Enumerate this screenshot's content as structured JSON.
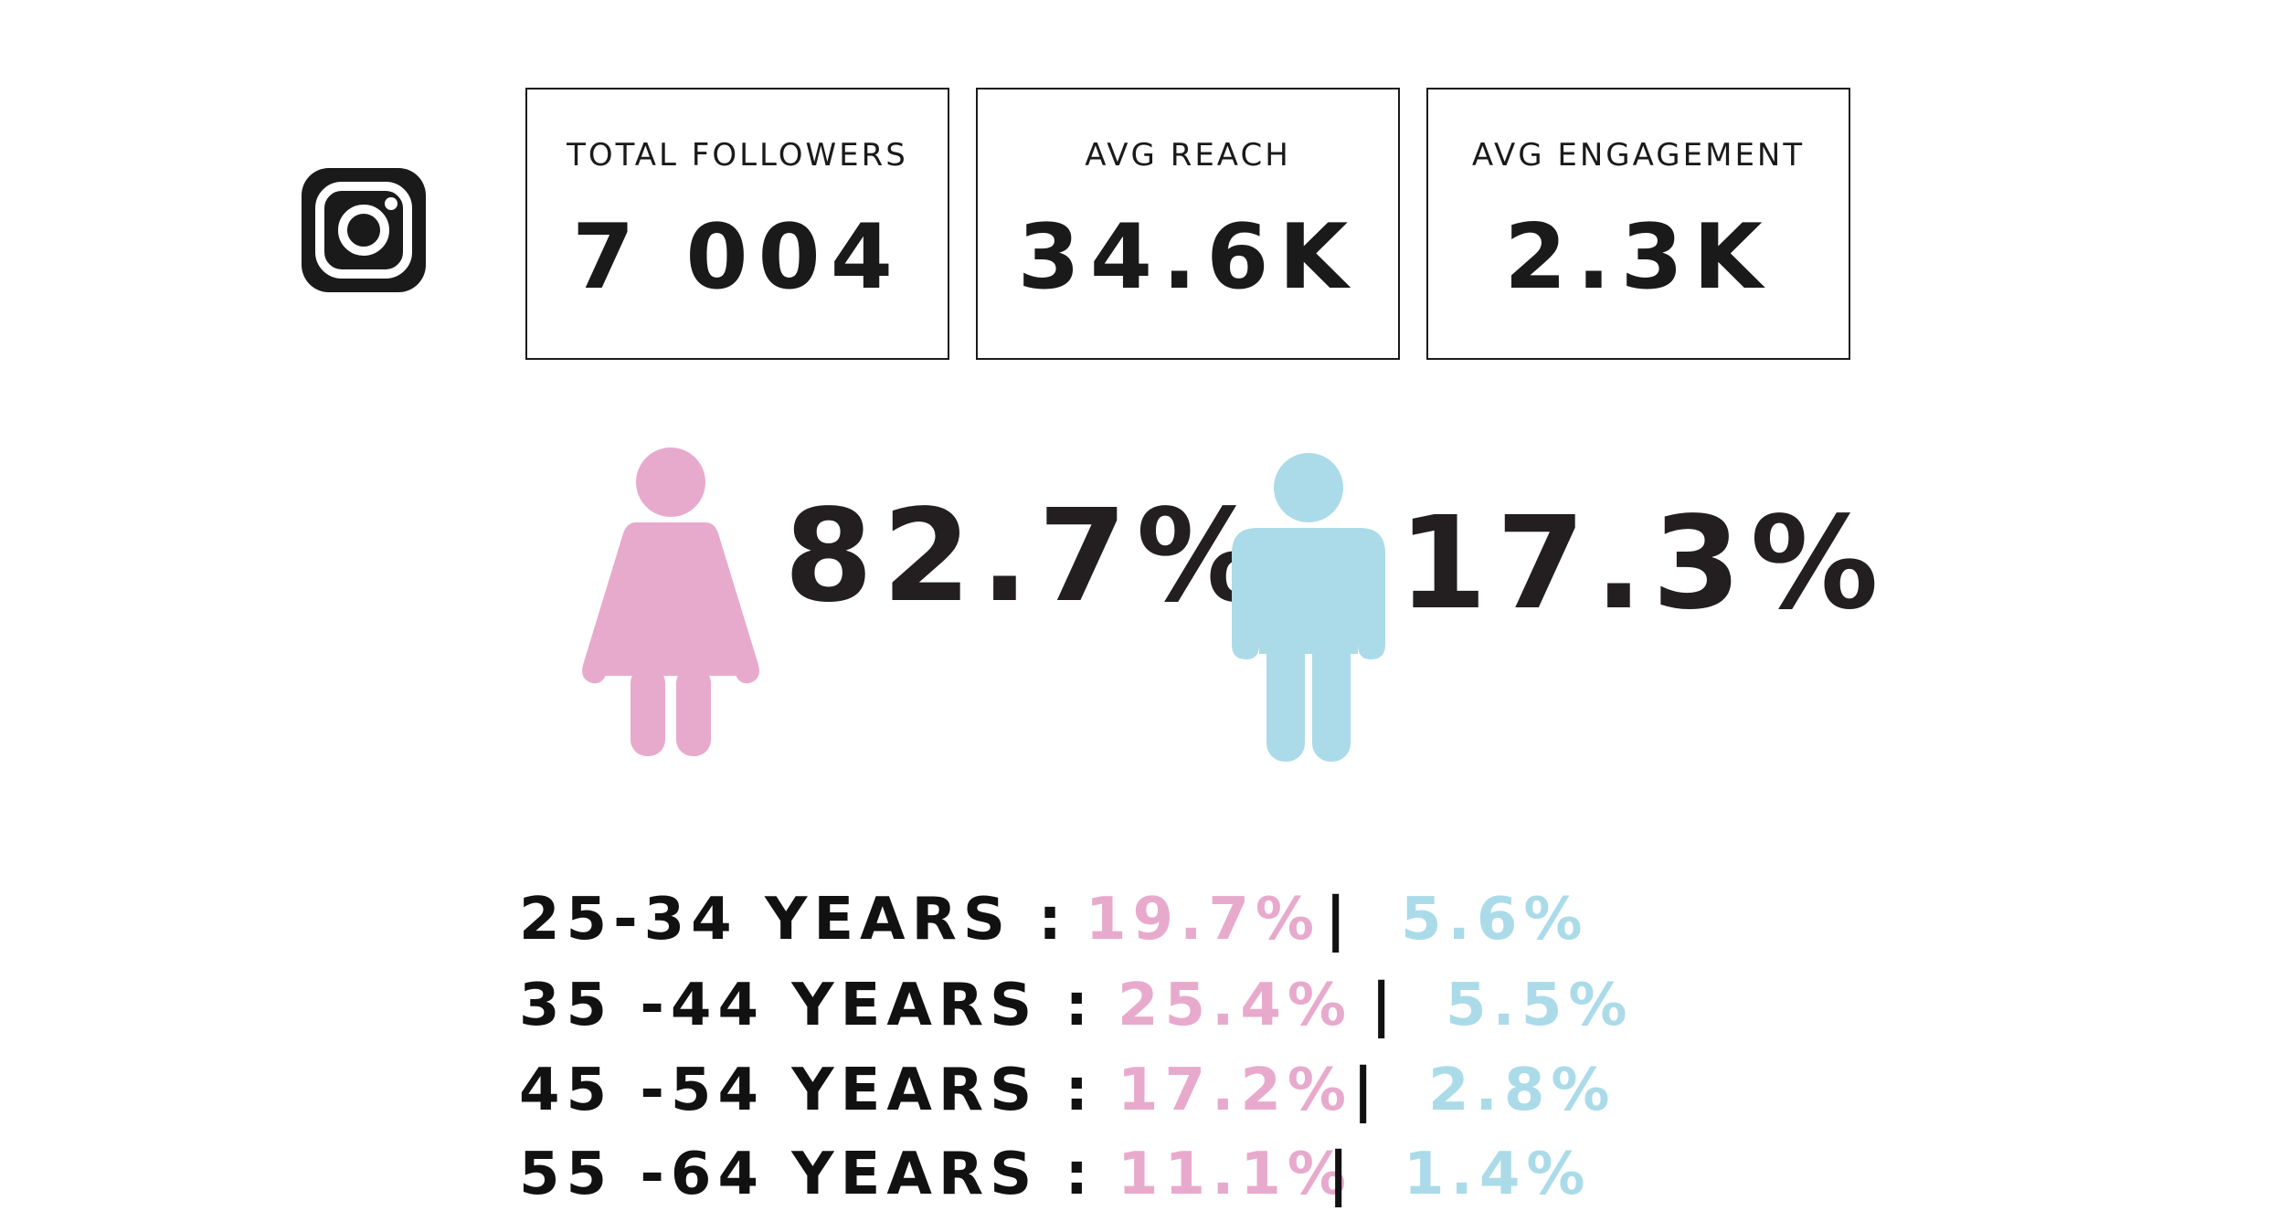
{
  "colors": {
    "female": "#e8aacc",
    "male": "#abdbe8",
    "text": "#1a1a1a"
  },
  "platform_icon": "instagram-icon",
  "stats": [
    {
      "label": "TOTAL FOLLOWERS",
      "value": "7 004"
    },
    {
      "label": "AVG REACH",
      "value": "34.6K"
    },
    {
      "label": "AVG ENGAGEMENT",
      "value": "2.3K"
    }
  ],
  "gender": {
    "female": {
      "icon": "female-figure-icon",
      "percent": "82.7%"
    },
    "male": {
      "icon": "male-figure-icon",
      "percent": "17.3%"
    }
  },
  "age_groups": [
    {
      "label": "25-34 YEARS :",
      "female": "19.7%",
      "separator": "|",
      "male": "5.6%"
    },
    {
      "label": "35 -44 YEARS :",
      "female": "25.4%",
      "separator": "|",
      "male": "5.5%"
    },
    {
      "label": "45 -54 YEARS :",
      "female": "17.2%",
      "separator": "|",
      "male": "2.8%"
    },
    {
      "label": "55 -64 YEARS :",
      "female": "11.1%",
      "separator": "|",
      "male": "1.4%"
    }
  ]
}
